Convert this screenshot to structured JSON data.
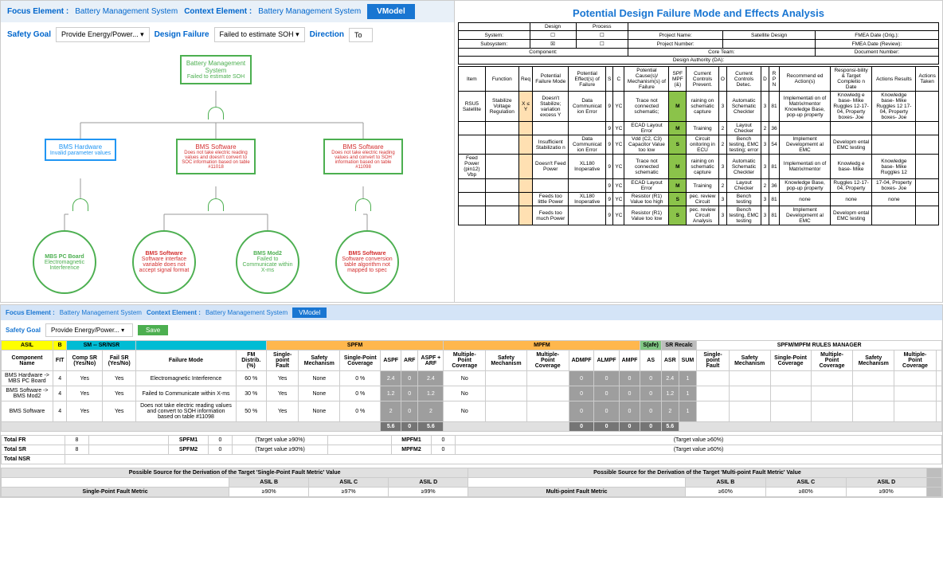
{
  "top_left": {
    "focus_label": "Focus Element :",
    "focus_value": "Battery Management System",
    "context_label": "Context Element :",
    "context_value": "Battery Management System",
    "vmodel_btn": "VModel",
    "safety_goal_label": "Safety Goal",
    "safety_goal_value": "Provide Energy/Power...",
    "design_failure_label": "Design Failure",
    "design_failure_value": "Failed to estimate SOH",
    "direction_label": "Direction",
    "direction_value": "To"
  },
  "tree": {
    "root": {
      "title": "Battery Management System",
      "sub": "Failed to estimate SOH"
    },
    "level2": [
      {
        "title": "BMS Hardware",
        "sub": "Invalid parameter values",
        "color": "blue"
      },
      {
        "title": "BMS Software",
        "sub": "Does not take electric reading values and doesn't convert to SOC information based on table #11018",
        "color": "red"
      },
      {
        "title": "BMS Software",
        "sub": "Does not take electric reading values and convert to SOH information based on table #11098",
        "color": "red"
      }
    ],
    "level3": [
      {
        "title": "MBS PC Board",
        "sub": "Electromagnetic Interference",
        "color": "green"
      },
      {
        "title": "BMS Software",
        "sub": "Software interface variable does not accept signal format",
        "color": "red"
      },
      {
        "title": "BMS Mod2",
        "sub": "Failed to Communicate within X-ms",
        "color": "green"
      },
      {
        "title": "BMS Software",
        "sub": "Software conversion table algorithm not mapped to spec",
        "color": "red"
      }
    ]
  },
  "fmea": {
    "title": "Potential Design Failure Mode and Effects Analysis",
    "hdr": {
      "design": "Design",
      "process": "Process",
      "system": "System:",
      "project_name": "Project Name:",
      "project_name_val": "Satellite Design",
      "fmea_orig": "FMEA Date (Orig.):",
      "subsystem": "Subsystem:",
      "project_num": "Project Number:",
      "fmea_rev": "FMEA Date (Review):",
      "component": "Component:",
      "core_team": "Core Team:",
      "doc_num": "Document Number:",
      "da": "Design Authority (DA):"
    },
    "cols": [
      "Item",
      "Function",
      "Req",
      "Potential Failure Mode",
      "Potential Effect(s) of Failure",
      "S",
      "C",
      "Potential Cause(s)/ Mechanism(s) of Failure",
      "SPF MPF (&)",
      "Current Controls Prevent.",
      "O",
      "Current Controls Detec.",
      "D",
      "R P N",
      "Recommend ed Action(s)",
      "Responsi-bility & Target Completio n Date",
      "Actions Results",
      "Actions Taken"
    ],
    "rows": [
      {
        "item": "RSU5 Satellite",
        "func": "Stabilize Voltage Regulation",
        "req": "X ≤ Y",
        "pfm": "Doesn't Stabilize; variation excess Y",
        "effect": "Data Communicat ion Error",
        "s": "9",
        "c": "YC",
        "cause": "Trace not connected schematic;",
        "spf": "M",
        "prevent": "raining on schematic capture",
        "o": "3",
        "detec": "Automatic Schematic Checkter",
        "d": "3",
        "rpn": "81",
        "rec": "Implementati on of Matrix/mentor Knowledge Base, pop-up property",
        "resp": "Knowledg e base- Mike Ruggles 12-17-04, Property boxes- Joe",
        "actres": "Knowledge base- Mike Ruggles 12 17-04, Property boxes- Joe"
      },
      {
        "item": "",
        "func": "",
        "req": "",
        "pfm": "",
        "effect": "",
        "s": "9",
        "c": "YC",
        "cause": "ECAD Layout Error",
        "spf": "M",
        "prevent": "Training",
        "o": "2",
        "detec": "Layout Checker",
        "d": "2",
        "rpn": "36",
        "rec": "",
        "resp": "",
        "actres": ""
      },
      {
        "item": "",
        "func": "",
        "req": "",
        "pfm": "Insufficient Stabilizatio n",
        "effect": "Data Communicat ion Error",
        "s": "9",
        "c": "YC",
        "cause": "Vdd (C2, C3) Capacitor Value too low",
        "spf": "S",
        "prevent": "Circuit onitoring in ECU",
        "o": "2",
        "detec": "Bench testing, EMC testing; error",
        "d": "3",
        "rpn": "54",
        "rec": "Implement Developmemt al EMC",
        "resp": "Developm ental EMC testing",
        "actres": ""
      },
      {
        "item": "Feed Power (pin12) Vbp",
        "func": "",
        "req": "",
        "pfm": "Doesn't Feed Power",
        "effect": "XL180 Inoperative",
        "s": "9",
        "c": "YC",
        "cause": "Trace not connected schematic",
        "spf": "M",
        "prevent": "raining on schematic capture",
        "o": "3",
        "detec": "Automatic Schematic Checkter",
        "d": "3",
        "rpn": "81",
        "rec": "Implementati on of Matrix/mentor",
        "resp": "Knowledg e base- Mike",
        "actres": "Knowledge base- Mike Ruggles 12"
      },
      {
        "item": "",
        "func": "",
        "req": "",
        "pfm": "",
        "effect": "",
        "s": "9",
        "c": "YC",
        "cause": "ECAD Layout Error",
        "spf": "M",
        "prevent": "Training",
        "o": "2",
        "detec": "Layout Checker",
        "d": "2",
        "rpn": "36",
        "rec": "Knowledge Base, pop-up property",
        "resp": "Ruggles 12-17-04, Property",
        "actres": "17-04, Property boxes- Joe"
      },
      {
        "item": "",
        "func": "",
        "req": "",
        "pfm": "Feeds too little Power",
        "effect": "XL180 Inoperative",
        "s": "9",
        "c": "YC",
        "cause": "Resistor (R1) Value too high",
        "spf": "S",
        "prevent": "pec. review Circuit",
        "o": "3",
        "detec": "Bench testing",
        "d": "3",
        "rpn": "81",
        "rec": "none",
        "resp": "none",
        "actres": "none"
      },
      {
        "item": "",
        "func": "",
        "req": "",
        "pfm": "Feeds too much Power",
        "effect": "",
        "s": "9",
        "c": "YC",
        "cause": "Resistor (R1) Value too low",
        "spf": "S",
        "prevent": "pec. review Circuit Analysis",
        "o": "3",
        "detec": "Bench testing, EMC testing",
        "d": "3",
        "rpn": "81",
        "rec": "Implement Developmemt al EMC",
        "resp": "Developm ental EMC testing",
        "actres": ""
      }
    ]
  },
  "bottom": {
    "focus_label": "Focus Element :",
    "focus_value": "Battery Management System",
    "context_label": "Context Element :",
    "context_value": "Battery Management System",
    "vmodel": "VModel",
    "safety_goal_label": "Safety Goal",
    "safety_goal_value": "Provide Energy/Power...",
    "save": "Save",
    "asil": "ASIL",
    "asil_val": "B",
    "table_headers": {
      "component": "Component Name",
      "fit": "FIT",
      "sm_sr": "SM -- SR/NSR",
      "comp_sr": "Comp SR (Yes/No)",
      "fail_sr": "Fail SR (Yes/No)",
      "failure_mode": "Failure Mode",
      "fm_dist": "FM Distrib. (%)",
      "spfm": "SPFM",
      "sp_fault": "Single-point Fault",
      "safety_mech": "Safety Mechanism",
      "sp_cov": "Single-Point Coverage",
      "aspf": "ASPF",
      "arf": "ARF",
      "aspf_arf": "ASPF + ARF",
      "mpfm": "MPFM",
      "mp_cov": "Multiple-Point Coverage",
      "admpf": "ADMPF",
      "almpf": "ALMPF",
      "ampf": "AMPF",
      "safe": "S(afe)",
      "sr_recalc": "SR Recalc",
      "as": "AS",
      "asr": "ASR",
      "sum": "SUM",
      "rules": "SPFM/MPFM RULES MANAGER"
    },
    "rows": [
      {
        "name": "BMS Hardware -> MBS PC Board",
        "fit": "4",
        "csr": "Yes",
        "fsr": "Yes",
        "fm": "Electromagnetic Interference",
        "dist": "60 %",
        "spf": "Yes",
        "sm": "None",
        "spc": "0 %",
        "aspf": "2.4",
        "arf": "0",
        "aspfarf": "2.4",
        "mpc": "No",
        "admpf": "0",
        "almpf": "0",
        "ampf": "0",
        "as": "0",
        "asr": "2.4",
        "sum": "1"
      },
      {
        "name": "BMS Software -> BMS Mod2",
        "fit": "4",
        "csr": "Yes",
        "fsr": "Yes",
        "fm": "Failed to Communicate within X-ms",
        "dist": "30 %",
        "spf": "Yes",
        "sm": "None",
        "spc": "0 %",
        "aspf": "1.2",
        "arf": "0",
        "aspfarf": "1.2",
        "mpc": "No",
        "admpf": "0",
        "almpf": "0",
        "ampf": "0",
        "as": "0",
        "asr": "1.2",
        "sum": "1"
      },
      {
        "name": "BMS Software",
        "fit": "4",
        "csr": "Yes",
        "fsr": "Yes",
        "fm": "Does not take electric reading values and convert to SOH information based on table #11098",
        "dist": "50 %",
        "spf": "Yes",
        "sm": "None",
        "spc": "0 %",
        "aspf": "2",
        "arf": "0",
        "aspfarf": "2",
        "mpc": "No",
        "admpf": "0",
        "almpf": "0",
        "ampf": "0",
        "as": "0",
        "asr": "2",
        "sum": "1"
      }
    ],
    "totals": {
      "aspf": "5.6",
      "arf": "0",
      "aspfarf": "5.6",
      "admpf": "0",
      "almpf": "0",
      "ampf": "0",
      "as": "0",
      "asr": "5.6"
    },
    "total_fr": "Total FR",
    "total_fr_v": "8",
    "total_sr": "Total SR",
    "total_sr_v": "8",
    "total_nsr": "Total NSR",
    "spfm1": "SPFM1",
    "spfm1_v": "0",
    "spfm1_t": "(Target value ≥90%)",
    "spfm2": "SPFM2",
    "spfm2_v": "0",
    "spfm2_t": "(Target value ≥90%)",
    "mpfm1": "MPFM1",
    "mpfm1_v": "0",
    "mpfm1_t": "(Target value ≥60%)",
    "mpfm2": "MPFM2",
    "mpfm2_v": "0",
    "mpfm2_t": "(Target value ≥60%)",
    "source1": "Possible Source for the Derivation of the Target 'Single-Point Fault Metric' Value",
    "source2": "Possible Source for the Derivation of the Target 'Multi-point Fault Metric' Value",
    "asil_b": "ASIL B",
    "asil_c": "ASIL C",
    "asil_d": "ASIL D",
    "sp_metric": "Single-Point Fault Metric",
    "mp_metric": "Multi-point Fault Metric",
    "v90": "≥90%",
    "v97": "≥97%",
    "v99": "≥99%",
    "v60": "≥60%",
    "v80": "≥80%"
  }
}
